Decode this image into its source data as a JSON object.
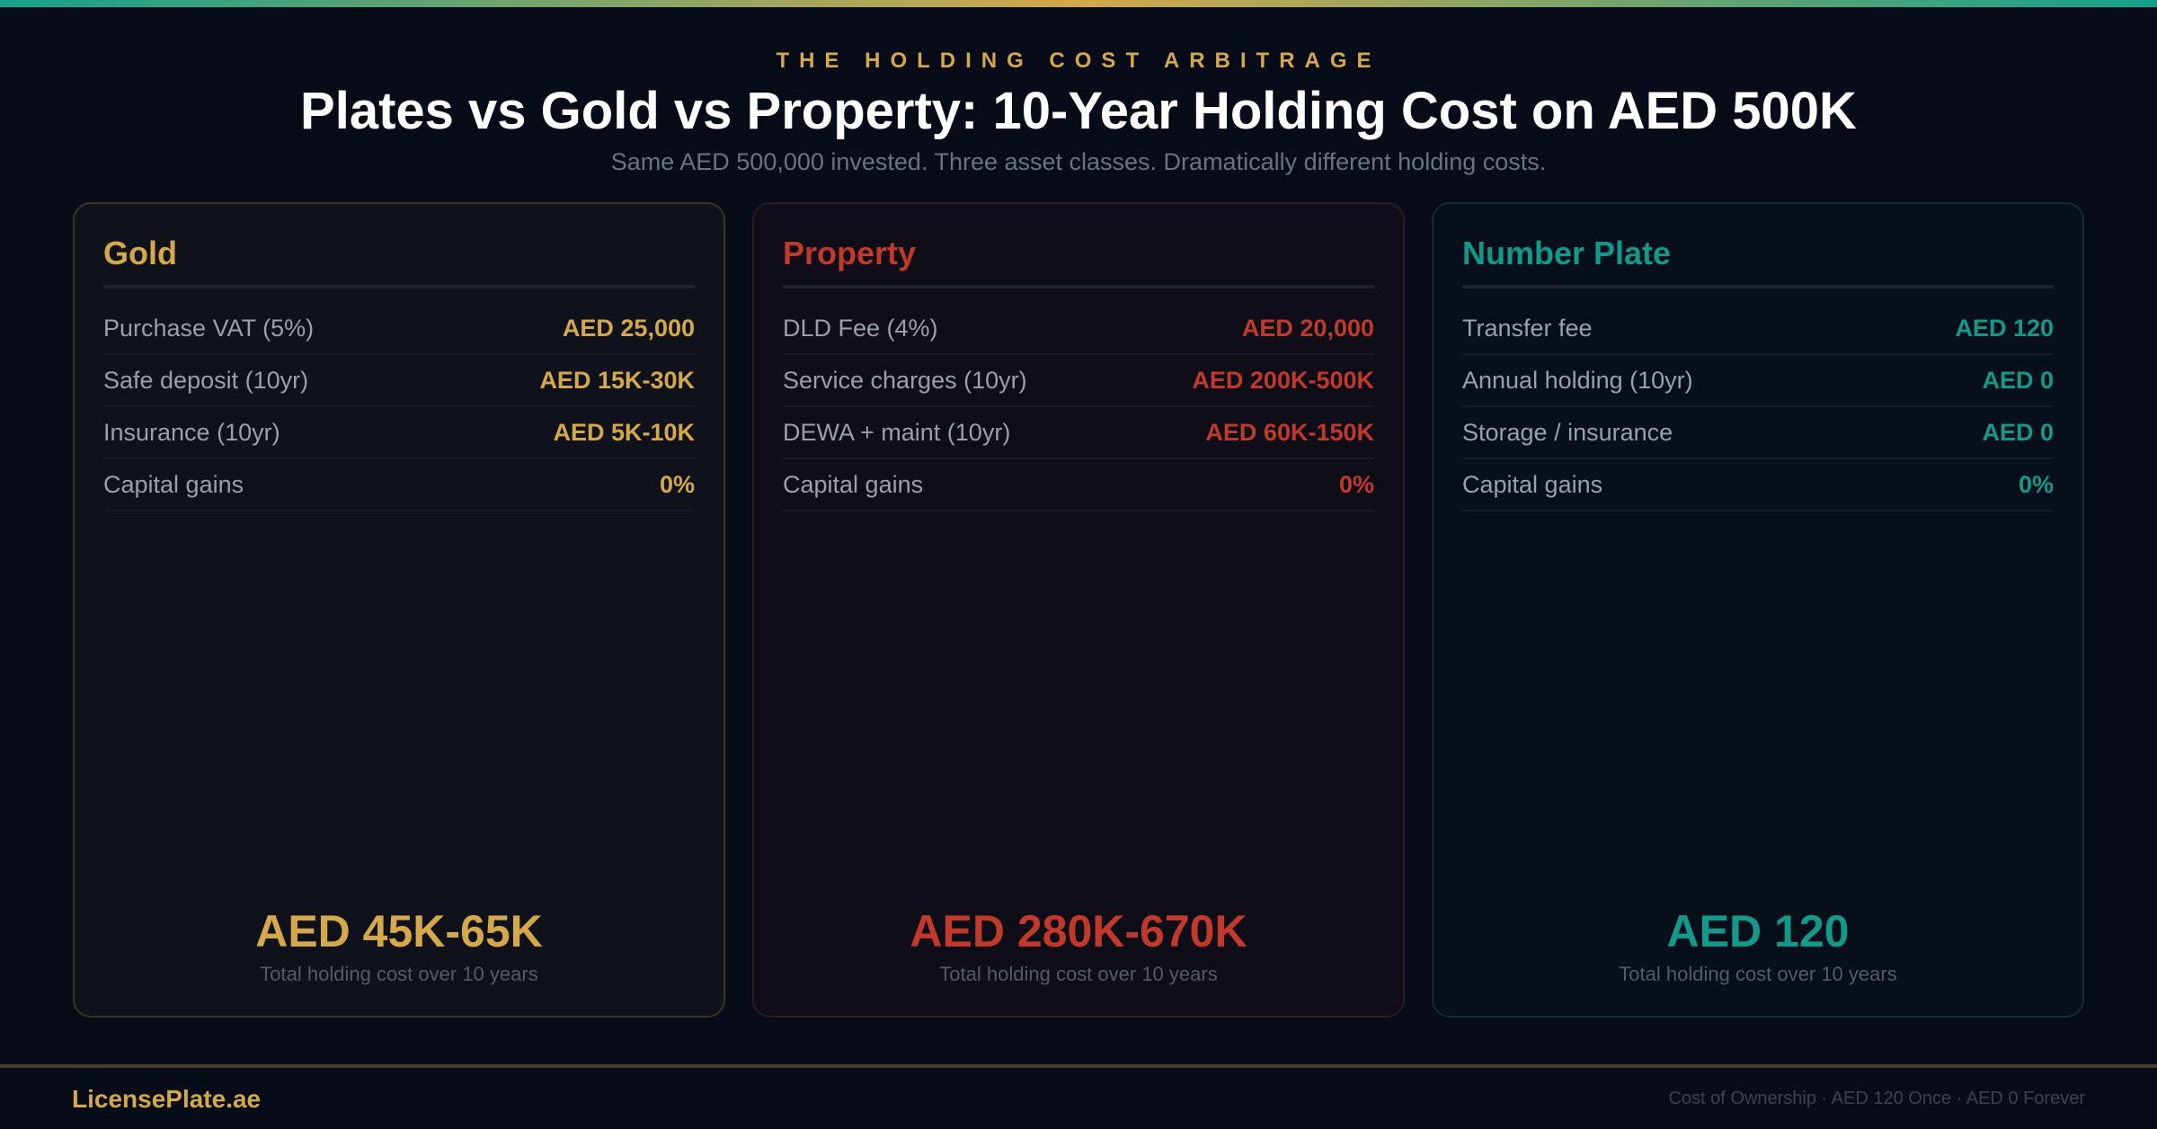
{
  "header": {
    "eyebrow": "THE HOLDING COST ARBITRAGE",
    "title": "Plates vs Gold vs Property: 10-Year Holding Cost on AED 500K",
    "subtitle": "Same AED 500,000 invested. Three asset classes. Dramatically different holding costs."
  },
  "colors": {
    "gold": "#d4a84b",
    "property": "#c0392b",
    "plate": "#13998a",
    "background": "#080c18"
  },
  "cards": [
    {
      "title": "Gold",
      "rows": [
        {
          "label": "Purchase VAT (5%)",
          "value": "AED 25,000"
        },
        {
          "label": "Safe deposit (10yr)",
          "value": "AED 15K-30K"
        },
        {
          "label": "Insurance (10yr)",
          "value": "AED 5K-10K"
        },
        {
          "label": "Capital gains",
          "value": "0%"
        }
      ],
      "total": "AED 45K-65K",
      "caption": "Total holding cost over 10 years"
    },
    {
      "title": "Property",
      "rows": [
        {
          "label": "DLD Fee (4%)",
          "value": "AED 20,000"
        },
        {
          "label": "Service charges (10yr)",
          "value": "AED 200K-500K"
        },
        {
          "label": "DEWA + maint (10yr)",
          "value": "AED 60K-150K"
        },
        {
          "label": "Capital gains",
          "value": "0%"
        }
      ],
      "total": "AED 280K-670K",
      "caption": "Total holding cost over 10 years"
    },
    {
      "title": "Number Plate",
      "rows": [
        {
          "label": "Transfer fee",
          "value": "AED 120"
        },
        {
          "label": "Annual holding (10yr)",
          "value": "AED 0"
        },
        {
          "label": "Storage / insurance",
          "value": "AED 0"
        },
        {
          "label": "Capital gains",
          "value": "0%"
        }
      ],
      "total": "AED 120",
      "caption": "Total holding cost over 10 years"
    }
  ],
  "footer": {
    "brand": "LicensePlate.ae",
    "tagline": "Cost of Ownership · AED 120 Once · AED 0 Forever"
  }
}
